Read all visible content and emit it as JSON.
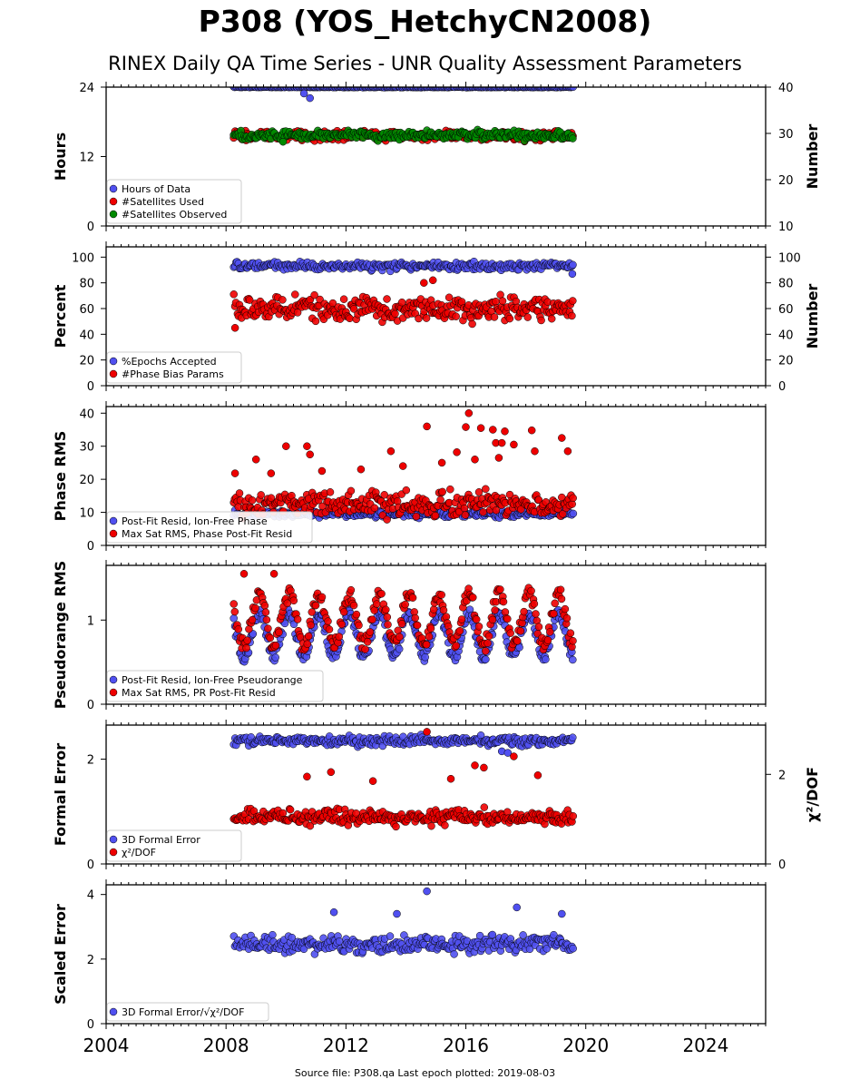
{
  "title": "P308 (YOS_HetchyCN2008)",
  "subtitle": "RINEX Daily QA Time Series - UNR Quality Assessment Parameters",
  "footer": "Source file: P308.qa Last epoch plotted: 2019-08-03",
  "colors": {
    "blue": "#5050f0",
    "red": "#ee0000",
    "green": "#008a00"
  },
  "chart_data": [
    {
      "type": "scatter",
      "xlim": [
        2004,
        2026
      ],
      "x_ticks": [
        "2004",
        "2008",
        "2012",
        "2016",
        "2020",
        "2024"
      ],
      "ylabel": "Hours",
      "ylim": [
        0,
        24
      ],
      "y_ticks": [
        "0",
        "12",
        "24"
      ],
      "y2label": "Number",
      "y2lim": [
        10,
        40
      ],
      "y2_ticks": [
        "10",
        "20",
        "30",
        "40"
      ],
      "legend": {
        "placement": "lower-left",
        "entries": [
          {
            "label": "Hours of Data",
            "color": "blue"
          },
          {
            "label": "#Satellites Used",
            "color": "red"
          },
          {
            "label": "#Satellites Observed",
            "color": "green"
          }
        ]
      },
      "series": [
        {
          "name": "Hours of Data",
          "color": "blue",
          "axis": "left",
          "x_range": [
            2008.25,
            2019.6
          ],
          "base": 24,
          "spread": 0.05,
          "outliers": [
            [
              2010.6,
              22.9
            ],
            [
              2010.8,
              22.1
            ]
          ]
        },
        {
          "name": "#Satellites Used",
          "color": "red",
          "axis": "right",
          "x_range": [
            2008.25,
            2019.6
          ],
          "base": 29.5,
          "spread": 0.8,
          "outliers": []
        },
        {
          "name": "#Satellites Observed",
          "color": "green",
          "axis": "right",
          "x_range": [
            2008.25,
            2019.6
          ],
          "base": 29.6,
          "spread": 0.8,
          "outliers": [
            [
              2009.9,
              28.2
            ]
          ]
        }
      ]
    },
    {
      "type": "scatter",
      "xlim": [
        2004,
        2026
      ],
      "x_ticks": [
        "2004",
        "2008",
        "2012",
        "2016",
        "2020",
        "2024"
      ],
      "ylabel": "Percent",
      "ylim": [
        0,
        108
      ],
      "y_ticks": [
        "0",
        "20",
        "40",
        "60",
        "80",
        "100"
      ],
      "y2label": "Number",
      "y2lim": [
        0,
        108
      ],
      "y2_ticks": [
        "0",
        "20",
        "40",
        "60",
        "80",
        "100"
      ],
      "legend": {
        "placement": "lower-left",
        "entries": [
          {
            "label": "%Epochs Accepted",
            "color": "blue"
          },
          {
            "label": "#Phase Bias Params",
            "color": "red"
          }
        ]
      },
      "series": [
        {
          "name": "%Epochs Accepted",
          "color": "blue",
          "axis": "left",
          "x_range": [
            2008.25,
            2019.6
          ],
          "base": 93,
          "spread": 2.5,
          "outliers": [
            [
              2019.55,
              87
            ]
          ]
        },
        {
          "name": "#Phase Bias Params",
          "color": "red",
          "axis": "right",
          "x_range": [
            2008.25,
            2019.6
          ],
          "base": 60,
          "spread": 7,
          "outliers": [
            [
              2014.6,
              80
            ],
            [
              2014.9,
              82
            ],
            [
              2008.3,
              45
            ]
          ]
        }
      ]
    },
    {
      "type": "scatter",
      "xlim": [
        2004,
        2026
      ],
      "x_ticks": [
        "2004",
        "2008",
        "2012",
        "2016",
        "2020",
        "2024"
      ],
      "ylabel": "Phase RMS",
      "ylim": [
        0,
        42
      ],
      "y_ticks": [
        "0",
        "10",
        "20",
        "30",
        "40"
      ],
      "legend": {
        "placement": "lower-left",
        "entries": [
          {
            "label": "Post-Fit Resid, Ion-Free Phase",
            "color": "blue"
          },
          {
            "label": "Max Sat RMS, Phase Post-Fit Resid",
            "color": "red"
          }
        ]
      },
      "series": [
        {
          "name": "Post-Fit Resid, Ion-Free Phase",
          "color": "blue",
          "axis": "left",
          "x_range": [
            2008.25,
            2019.6
          ],
          "base": 9.5,
          "spread": 0.8,
          "outliers": []
        },
        {
          "name": "Max Sat RMS, Phase Post-Fit Resid",
          "color": "red",
          "axis": "left",
          "x_range": [
            2008.25,
            2019.6
          ],
          "base": 12.5,
          "spread": 3,
          "outliers": [
            [
              2016.1,
              40
            ],
            [
              2014.7,
              36
            ],
            [
              2016.0,
              35.8
            ],
            [
              2016.5,
              35.5
            ],
            [
              2016.9,
              35
            ],
            [
              2017.3,
              34.5
            ],
            [
              2018.2,
              34.8
            ],
            [
              2019.2,
              32.5
            ],
            [
              2010.0,
              30
            ],
            [
              2010.7,
              30
            ],
            [
              2010.8,
              27.5
            ],
            [
              2017.0,
              31
            ],
            [
              2017.2,
              31
            ],
            [
              2017.6,
              30.5
            ],
            [
              2018.3,
              28.5
            ],
            [
              2019.4,
              28.5
            ],
            [
              2015.7,
              28.2
            ],
            [
              2016.3,
              26
            ],
            [
              2009.0,
              26
            ],
            [
              2013.5,
              28.5
            ],
            [
              2008.3,
              21.8
            ],
            [
              2009.5,
              21.8
            ],
            [
              2011.2,
              22.5
            ],
            [
              2012.5,
              23
            ],
            [
              2013.9,
              24
            ],
            [
              2015.2,
              25
            ],
            [
              2017.1,
              26.5
            ]
          ]
        }
      ]
    },
    {
      "type": "scatter",
      "xlim": [
        2004,
        2026
      ],
      "x_ticks": [
        "2004",
        "2008",
        "2012",
        "2016",
        "2020",
        "2024"
      ],
      "ylabel": "Pseudorange RMS",
      "ylim": [
        0,
        1.65
      ],
      "y_ticks": [
        "0",
        "1"
      ],
      "legend": {
        "placement": "lower-left",
        "entries": [
          {
            "label": "Post-Fit Resid, Ion-Free Pseudorange",
            "color": "blue"
          },
          {
            "label": "Max Sat RMS, PR Post-Fit Resid",
            "color": "red"
          }
        ]
      },
      "series": [
        {
          "name": "Post-Fit Resid, Ion-Free Pseudorange",
          "color": "blue",
          "axis": "left",
          "x_range": [
            2008.25,
            2019.6
          ],
          "seasonal": true,
          "base": 0.82,
          "amp": 0.26,
          "spread": 0.06,
          "outliers": []
        },
        {
          "name": "Max Sat RMS, PR Post-Fit Resid",
          "color": "red",
          "axis": "left",
          "x_range": [
            2008.25,
            2019.6
          ],
          "seasonal": true,
          "base": 1.0,
          "amp": 0.3,
          "spread": 0.09,
          "outliers": [
            [
              2008.6,
              1.55
            ],
            [
              2009.6,
              1.55
            ]
          ]
        }
      ]
    },
    {
      "type": "scatter",
      "xlim": [
        2004,
        2026
      ],
      "x_ticks": [
        "2004",
        "2008",
        "2012",
        "2016",
        "2020",
        "2024"
      ],
      "ylabel": "Formal Error",
      "ylim": [
        0,
        2.65
      ],
      "y_ticks": [
        "0",
        "2"
      ],
      "y2label": "χ²/DOF",
      "y2lim": [
        0,
        3.1
      ],
      "y2_ticks": [
        "0",
        "2"
      ],
      "legend": {
        "placement": "lower-left",
        "entries": [
          {
            "label": "3D Formal Error",
            "color": "blue"
          },
          {
            "label": "χ²/DOF",
            "color": "red"
          }
        ]
      },
      "series": [
        {
          "name": "3D Formal Error",
          "color": "blue",
          "axis": "left",
          "x_range": [
            2008.25,
            2019.6
          ],
          "base": 2.35,
          "spread": 0.07,
          "outliers": [
            [
              2017.2,
              2.15
            ],
            [
              2017.4,
              2.12
            ]
          ]
        },
        {
          "name": "χ²/DOF",
          "color": "red",
          "axis": "right",
          "x_range": [
            2008.25,
            2019.6
          ],
          "base": 1.05,
          "spread": 0.14,
          "outliers": [
            [
              2014.7,
              2.95
            ],
            [
              2016.3,
              2.2
            ],
            [
              2016.6,
              2.15
            ],
            [
              2017.6,
              2.4
            ],
            [
              2011.5,
              2.05
            ],
            [
              2010.7,
              1.95
            ],
            [
              2018.4,
              1.98
            ],
            [
              2015.5,
              1.9
            ],
            [
              2012.9,
              1.85
            ]
          ]
        }
      ]
    },
    {
      "type": "scatter",
      "xlim": [
        2004,
        2026
      ],
      "x_ticks": [
        "2004",
        "2008",
        "2012",
        "2016",
        "2020",
        "2024"
      ],
      "ylabel": "Scaled Error",
      "ylim": [
        0,
        4.3
      ],
      "y_ticks": [
        "0",
        "2",
        "4"
      ],
      "legend": {
        "placement": "lower-left",
        "entries": [
          {
            "label": "3D Formal Error/√χ²/DOF",
            "color": "blue"
          }
        ]
      },
      "series": [
        {
          "name": "3D Formal Error/√χ²/DOF",
          "color": "blue",
          "axis": "left",
          "x_range": [
            2008.25,
            2019.6
          ],
          "base": 2.45,
          "spread": 0.22,
          "outliers": [
            [
              2014.7,
              4.1
            ],
            [
              2017.7,
              3.6
            ],
            [
              2011.6,
              3.45
            ],
            [
              2013.7,
              3.4
            ],
            [
              2019.2,
              3.4
            ]
          ]
        }
      ]
    }
  ]
}
